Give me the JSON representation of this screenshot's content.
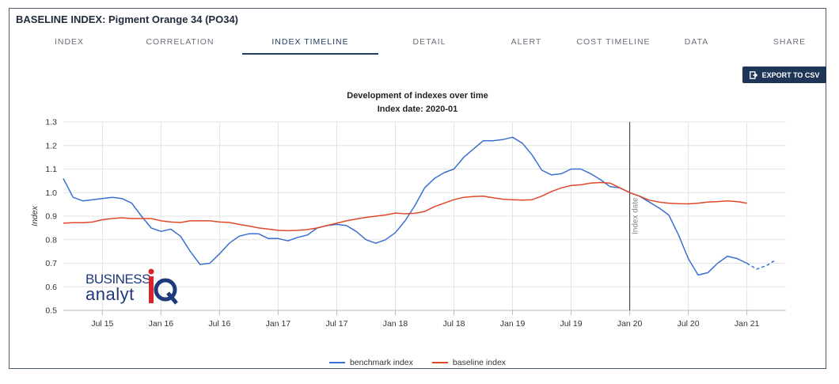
{
  "header": {
    "title": "BASELINE INDEX: Pigment Orange 34 (PO34)"
  },
  "tabs": [
    {
      "label": "INDEX",
      "active": false
    },
    {
      "label": "CORRELATION",
      "active": false
    },
    {
      "label": "INDEX TIMELINE",
      "active": true
    },
    {
      "label": "DETAIL",
      "active": false
    },
    {
      "label": "ALERT",
      "active": false
    },
    {
      "label": "COST TIMELINE",
      "active": false
    },
    {
      "label": "DATA",
      "active": false
    },
    {
      "label": "SHARE",
      "active": false
    }
  ],
  "toolbar": {
    "export_label": "EXPORT TO CSV"
  },
  "logo": {
    "line1": "BUSINESS",
    "line2": "analyt",
    "mark": "iQ"
  },
  "colors": {
    "accent": "#1f3558",
    "benchmark": "#3a6fd0",
    "baseline": "#e0482a",
    "grid": "#dcdcdc"
  },
  "chart_data": {
    "type": "line",
    "title": "Development of indexes over time",
    "subtitle": "Index date: 2020-01",
    "ylabel": "Index",
    "ylim": [
      0.5,
      1.3
    ],
    "yticks": [
      "1.3",
      "1.2",
      "1.1",
      "1.0",
      "0.9",
      "0.8",
      "0.7",
      "0.6",
      "0.5"
    ],
    "xlim": [
      "2015-03",
      "2021-05"
    ],
    "xticks": [
      {
        "label": "Jul 15",
        "date": "2015-07"
      },
      {
        "label": "Jan 16",
        "date": "2016-01"
      },
      {
        "label": "Jul 16",
        "date": "2016-07"
      },
      {
        "label": "Jan 17",
        "date": "2017-01"
      },
      {
        "label": "Jul 17",
        "date": "2017-07"
      },
      {
        "label": "Jan 18",
        "date": "2018-01"
      },
      {
        "label": "Jul 18",
        "date": "2018-07"
      },
      {
        "label": "Jan 19",
        "date": "2019-01"
      },
      {
        "label": "Jul 19",
        "date": "2019-07"
      },
      {
        "label": "Jan 20",
        "date": "2020-01"
      },
      {
        "label": "Jul 20",
        "date": "2020-07"
      },
      {
        "label": "Jan 21",
        "date": "2021-01"
      }
    ],
    "grid": true,
    "legend_position": "bottom-center",
    "annotation": {
      "label": "Index date",
      "x": "2020-01"
    },
    "series": [
      {
        "name": "benchmark index",
        "color": "#3a6fd0",
        "points": [
          [
            "2015-03",
            1.06
          ],
          [
            "2015-04",
            0.98
          ],
          [
            "2015-05",
            0.965
          ],
          [
            "2015-06",
            0.97
          ],
          [
            "2015-07",
            0.975
          ],
          [
            "2015-08",
            0.98
          ],
          [
            "2015-09",
            0.975
          ],
          [
            "2015-10",
            0.955
          ],
          [
            "2015-11",
            0.9
          ],
          [
            "2015-12",
            0.85
          ],
          [
            "2016-01",
            0.835
          ],
          [
            "2016-02",
            0.845
          ],
          [
            "2016-03",
            0.815
          ],
          [
            "2016-04",
            0.75
          ],
          [
            "2016-05",
            0.695
          ],
          [
            "2016-06",
            0.7
          ],
          [
            "2016-07",
            0.74
          ],
          [
            "2016-08",
            0.785
          ],
          [
            "2016-09",
            0.815
          ],
          [
            "2016-10",
            0.825
          ],
          [
            "2016-11",
            0.825
          ],
          [
            "2016-12",
            0.805
          ],
          [
            "2017-01",
            0.805
          ],
          [
            "2017-02",
            0.795
          ],
          [
            "2017-03",
            0.81
          ],
          [
            "2017-04",
            0.82
          ],
          [
            "2017-05",
            0.85
          ],
          [
            "2017-06",
            0.86
          ],
          [
            "2017-07",
            0.865
          ],
          [
            "2017-08",
            0.86
          ],
          [
            "2017-09",
            0.835
          ],
          [
            "2017-10",
            0.8
          ],
          [
            "2017-11",
            0.785
          ],
          [
            "2017-12",
            0.8
          ],
          [
            "2018-01",
            0.83
          ],
          [
            "2018-02",
            0.88
          ],
          [
            "2018-03",
            0.945
          ],
          [
            "2018-04",
            1.02
          ],
          [
            "2018-05",
            1.06
          ],
          [
            "2018-06",
            1.085
          ],
          [
            "2018-07",
            1.1
          ],
          [
            "2018-08",
            1.15
          ],
          [
            "2018-09",
            1.185
          ],
          [
            "2018-10",
            1.22
          ],
          [
            "2018-11",
            1.22
          ],
          [
            "2018-12",
            1.225
          ],
          [
            "2019-01",
            1.235
          ],
          [
            "2019-02",
            1.21
          ],
          [
            "2019-03",
            1.16
          ],
          [
            "2019-04",
            1.095
          ],
          [
            "2019-05",
            1.075
          ],
          [
            "2019-06",
            1.08
          ],
          [
            "2019-07",
            1.1
          ],
          [
            "2019-08",
            1.1
          ],
          [
            "2019-09",
            1.08
          ],
          [
            "2019-10",
            1.055
          ],
          [
            "2019-11",
            1.025
          ],
          [
            "2019-12",
            1.02
          ],
          [
            "2020-01",
            1.0
          ],
          [
            "2020-02",
            0.985
          ],
          [
            "2020-03",
            0.96
          ],
          [
            "2020-04",
            0.935
          ],
          [
            "2020-05",
            0.905
          ],
          [
            "2020-06",
            0.82
          ],
          [
            "2020-07",
            0.72
          ],
          [
            "2020-08",
            0.65
          ],
          [
            "2020-09",
            0.66
          ],
          [
            "2020-10",
            0.7
          ],
          [
            "2020-11",
            0.73
          ],
          [
            "2020-12",
            0.72
          ],
          [
            "2021-01",
            0.7
          ]
        ],
        "forecast": [
          [
            "2021-01",
            0.7
          ],
          [
            "2021-02",
            0.675
          ],
          [
            "2021-03",
            0.69
          ],
          [
            "2021-04",
            0.715
          ]
        ]
      },
      {
        "name": "baseline index",
        "color": "#e0482a",
        "points": [
          [
            "2015-03",
            0.87
          ],
          [
            "2015-04",
            0.872
          ],
          [
            "2015-05",
            0.872
          ],
          [
            "2015-06",
            0.875
          ],
          [
            "2015-07",
            0.885
          ],
          [
            "2015-08",
            0.89
          ],
          [
            "2015-09",
            0.893
          ],
          [
            "2015-10",
            0.89
          ],
          [
            "2015-11",
            0.89
          ],
          [
            "2015-12",
            0.89
          ],
          [
            "2016-01",
            0.88
          ],
          [
            "2016-02",
            0.875
          ],
          [
            "2016-03",
            0.873
          ],
          [
            "2016-04",
            0.88
          ],
          [
            "2016-05",
            0.88
          ],
          [
            "2016-06",
            0.88
          ],
          [
            "2016-07",
            0.875
          ],
          [
            "2016-08",
            0.873
          ],
          [
            "2016-09",
            0.865
          ],
          [
            "2016-10",
            0.858
          ],
          [
            "2016-11",
            0.85
          ],
          [
            "2016-12",
            0.845
          ],
          [
            "2017-01",
            0.84
          ],
          [
            "2017-02",
            0.838
          ],
          [
            "2017-03",
            0.84
          ],
          [
            "2017-04",
            0.843
          ],
          [
            "2017-05",
            0.85
          ],
          [
            "2017-06",
            0.86
          ],
          [
            "2017-07",
            0.87
          ],
          [
            "2017-08",
            0.88
          ],
          [
            "2017-09",
            0.888
          ],
          [
            "2017-10",
            0.895
          ],
          [
            "2017-11",
            0.9
          ],
          [
            "2017-12",
            0.905
          ],
          [
            "2018-01",
            0.913
          ],
          [
            "2018-02",
            0.91
          ],
          [
            "2018-03",
            0.912
          ],
          [
            "2018-04",
            0.92
          ],
          [
            "2018-05",
            0.94
          ],
          [
            "2018-06",
            0.955
          ],
          [
            "2018-07",
            0.97
          ],
          [
            "2018-08",
            0.98
          ],
          [
            "2018-09",
            0.983
          ],
          [
            "2018-10",
            0.985
          ],
          [
            "2018-11",
            0.978
          ],
          [
            "2018-12",
            0.972
          ],
          [
            "2019-01",
            0.97
          ],
          [
            "2019-02",
            0.968
          ],
          [
            "2019-03",
            0.97
          ],
          [
            "2019-04",
            0.985
          ],
          [
            "2019-05",
            1.005
          ],
          [
            "2019-06",
            1.02
          ],
          [
            "2019-07",
            1.03
          ],
          [
            "2019-08",
            1.033
          ],
          [
            "2019-09",
            1.04
          ],
          [
            "2019-10",
            1.043
          ],
          [
            "2019-11",
            1.04
          ],
          [
            "2019-12",
            1.02
          ],
          [
            "2020-01",
            1.0
          ],
          [
            "2020-02",
            0.985
          ],
          [
            "2020-03",
            0.968
          ],
          [
            "2020-04",
            0.96
          ],
          [
            "2020-05",
            0.955
          ],
          [
            "2020-06",
            0.953
          ],
          [
            "2020-07",
            0.952
          ],
          [
            "2020-08",
            0.955
          ],
          [
            "2020-09",
            0.96
          ],
          [
            "2020-10",
            0.962
          ],
          [
            "2020-11",
            0.965
          ],
          [
            "2020-12",
            0.962
          ],
          [
            "2021-01",
            0.955
          ]
        ]
      }
    ]
  }
}
